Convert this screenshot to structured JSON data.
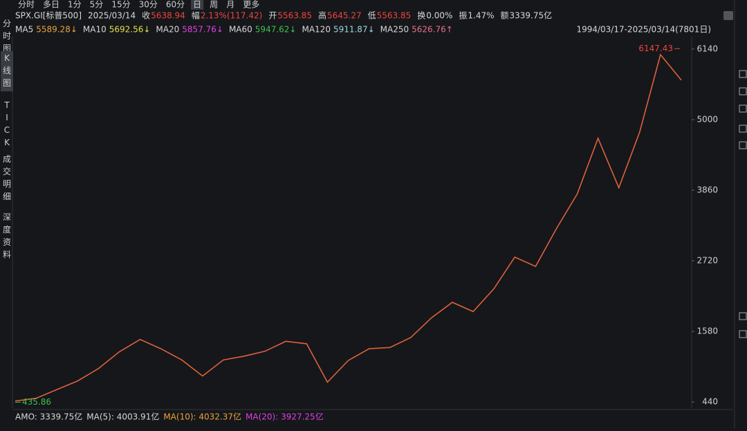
{
  "tabs": [
    "分时",
    "多日",
    "1分",
    "5分",
    "15分",
    "30分",
    "60分",
    "日",
    "周",
    "月",
    "更多"
  ],
  "info": [
    {
      "text": "SPX.GI[标普500]",
      "color": "#d8d8d8"
    },
    {
      "text": "2025/03/14",
      "color": "#d8d8d8"
    },
    {
      "text": "收",
      "color": "#d8d8d8"
    },
    {
      "text": "5638.94",
      "color": "#f0443c"
    },
    {
      "text": "幅",
      "color": "#d8d8d8"
    },
    {
      "text": "2.13%(117.42)",
      "color": "#f0443c"
    },
    {
      "text": "开",
      "color": "#d8d8d8"
    },
    {
      "text": "5563.85",
      "color": "#f0443c"
    },
    {
      "text": "高",
      "color": "#d8d8d8"
    },
    {
      "text": "5645.27",
      "color": "#f0443c"
    },
    {
      "text": "低",
      "color": "#d8d8d8"
    },
    {
      "text": "5563.85",
      "color": "#f0443c"
    },
    {
      "text": "换",
      "color": "#d8d8d8"
    },
    {
      "text": "0.00%",
      "color": "#d8d8d8"
    },
    {
      "text": "振",
      "color": "#d8d8d8"
    },
    {
      "text": "1.47%",
      "color": "#d8d8d8"
    },
    {
      "text": "额",
      "color": "#d8d8d8"
    },
    {
      "text": "3339.75亿",
      "color": "#d8d8d8"
    }
  ],
  "ma": [
    {
      "label": "MA5",
      "value": "5589.28↓",
      "color": "#e8a33b"
    },
    {
      "label": "MA10",
      "value": "5692.56↓",
      "color": "#e5e04a"
    },
    {
      "label": "MA20",
      "value": "5857.76↓",
      "color": "#e040e0"
    },
    {
      "label": "MA60",
      "value": "5947.62↓",
      "color": "#3fc24a"
    },
    {
      "label": "MA120",
      "value": "5911.87↓",
      "color": "#9fd8d8"
    },
    {
      "label": "MA250",
      "value": "5626.76↑",
      "color": "#e8708a"
    }
  ],
  "range": "1994/03/17-2025/03/14(7801日)",
  "side_tabs": [
    "分时图",
    "K线图",
    "TICK",
    "成交明细",
    "深度资料"
  ],
  "volume": [
    {
      "text": "AMO: 3339.75亿",
      "color": "#d8d8d8"
    },
    {
      "text": "MA(5): 4003.91亿",
      "color": "#d8d8d8"
    },
    {
      "text": "MA(10): 4032.37亿",
      "color": "#e8a33b"
    },
    {
      "text": "MA(20): 3927.25亿",
      "color": "#e040e0"
    }
  ],
  "chart_data": {
    "type": "line",
    "values": [
      455,
      500,
      640,
      780,
      980,
      1250,
      1450,
      1300,
      1120,
      860,
      1120,
      1180,
      1260,
      1420,
      1380,
      760,
      1110,
      1300,
      1320,
      1480,
      1800,
      2050,
      1900,
      2270,
      2780,
      2630,
      3240,
      3800,
      4700,
      3900,
      4800,
      6050,
      5638.94
    ],
    "color": "#e0603a",
    "ylim": [
      340,
      6240
    ],
    "yticks": [
      440,
      1580,
      2720,
      3860,
      5000,
      6140
    ],
    "max_label": 6147.43,
    "min_label": 435.86
  }
}
